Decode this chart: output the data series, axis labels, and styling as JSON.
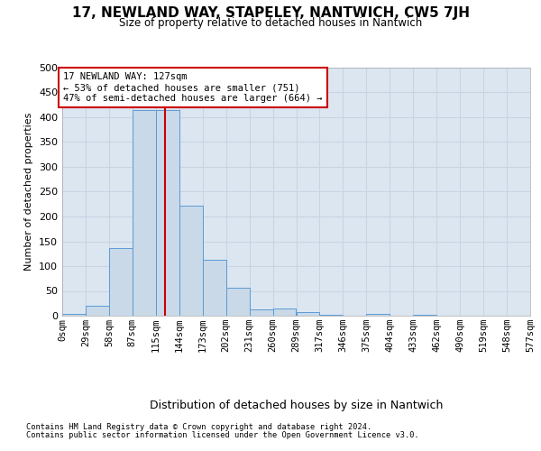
{
  "title": "17, NEWLAND WAY, STAPELEY, NANTWICH, CW5 7JH",
  "subtitle": "Size of property relative to detached houses in Nantwich",
  "xlabel": "Distribution of detached houses by size in Nantwich",
  "ylabel": "Number of detached properties",
  "bin_labels": [
    "0sqm",
    "29sqm",
    "58sqm",
    "87sqm",
    "115sqm",
    "144sqm",
    "173sqm",
    "202sqm",
    "231sqm",
    "260sqm",
    "289sqm",
    "317sqm",
    "346sqm",
    "375sqm",
    "404sqm",
    "433sqm",
    "462sqm",
    "490sqm",
    "519sqm",
    "548sqm",
    "577sqm"
  ],
  "bar_values": [
    3,
    20,
    136,
    415,
    415,
    222,
    113,
    56,
    12,
    15,
    8,
    1,
    0,
    3,
    0,
    1,
    0,
    0,
    0,
    0
  ],
  "bar_color": "#c9d9e8",
  "bar_edge_color": "#5b9bd5",
  "vline_x": 127,
  "vline_color": "#cc0000",
  "annotation_text": "17 NEWLAND WAY: 127sqm\n← 53% of detached houses are smaller (751)\n47% of semi-detached houses are larger (664) →",
  "annotation_box_color": "#ffffff",
  "annotation_box_edge": "#cc0000",
  "ylim": [
    0,
    500
  ],
  "yticks": [
    0,
    50,
    100,
    150,
    200,
    250,
    300,
    350,
    400,
    450,
    500
  ],
  "grid_color": "#c8d4e3",
  "background_color": "#dce6f1",
  "footer_line1": "Contains HM Land Registry data © Crown copyright and database right 2024.",
  "footer_line2": "Contains public sector information licensed under the Open Government Licence v3.0.",
  "bin_width": 29
}
